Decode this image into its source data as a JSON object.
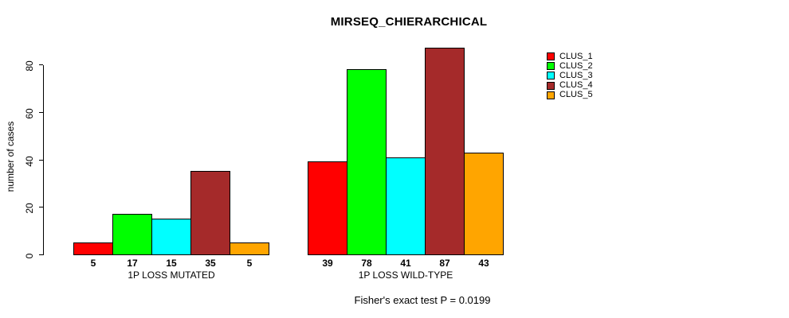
{
  "annotation": "Fisher's exact test P = 0.0199",
  "chart_data": {
    "type": "bar",
    "title": "MIRSEQ_CHIERARCHICAL",
    "ylabel": "number of cases",
    "xlabel": "",
    "categories": [
      "1P LOSS MUTATED",
      "1P LOSS WILD-TYPE"
    ],
    "series": [
      {
        "name": "CLUS_1",
        "color": "#FF0000",
        "values": [
          5,
          39
        ]
      },
      {
        "name": "CLUS_2",
        "color": "#00FF00",
        "values": [
          17,
          78
        ]
      },
      {
        "name": "CLUS_3",
        "color": "#00FFFF",
        "values": [
          15,
          41
        ]
      },
      {
        "name": "CLUS_4",
        "color": "#A52A2A",
        "values": [
          35,
          87
        ]
      },
      {
        "name": "CLUS_5",
        "color": "#FFA500",
        "values": [
          5,
          43
        ]
      }
    ],
    "yticks": [
      0,
      20,
      40,
      60,
      80
    ],
    "ylim": [
      0,
      87
    ],
    "grid": false,
    "bar_value_labels_shown": true,
    "legend_position": "right"
  }
}
